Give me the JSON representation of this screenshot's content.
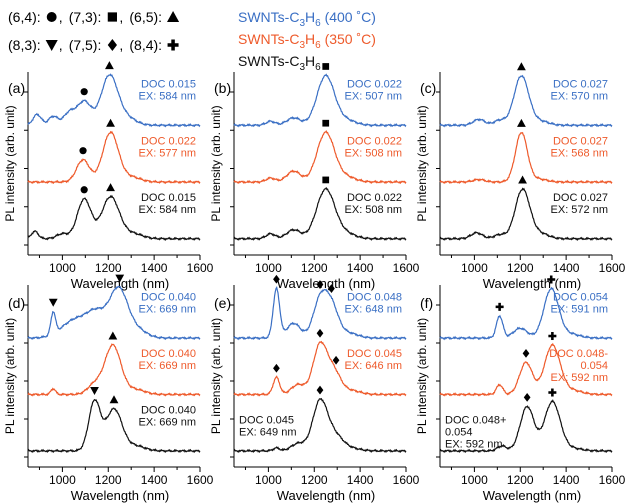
{
  "colors": {
    "blue": "#3a6fc4",
    "orange": "#ee5a2b",
    "black": "#111111"
  },
  "legend": {
    "markers": [
      {
        "label": "(6,4):",
        "symbol": "circle",
        "sep": ","
      },
      {
        "label": "(7,3):",
        "symbol": "square",
        "sep": ","
      },
      {
        "label": "(6,5):",
        "symbol": "triangle-up",
        "sep": ""
      },
      {
        "label": "(8,3):",
        "symbol": "triangle-down",
        "sep": ","
      },
      {
        "label": "(7,5):",
        "symbol": "diamond",
        "sep": ","
      },
      {
        "label": "(8,4):",
        "symbol": "cross",
        "sep": ""
      }
    ],
    "series": [
      {
        "name": "SWNTs-C3H6 (400 °C)",
        "base": "SWNTs-C",
        "sub": "3",
        "mid": "H",
        "sub2": "6",
        "suffix": " (400 ˚C)",
        "color": "blue"
      },
      {
        "name": "SWNTs-C3H6 (350 °C)",
        "base": "SWNTs-C",
        "sub": "3",
        "mid": "H",
        "sub2": "6",
        "suffix": " (350 ˚C)",
        "color": "orange"
      },
      {
        "name": "SWNTs-C3H6",
        "base": "SWNTs-C",
        "sub": "3",
        "mid": "H",
        "sub2": "6",
        "suffix": "",
        "color": "black"
      }
    ]
  },
  "chart_data": [
    {
      "panel": "(a)",
      "type": "line",
      "xlabel": "Wavelength (nm)",
      "ylabel": "PL intensity (arb. unit)",
      "xlim": [
        850,
        1600
      ],
      "xticks": [
        1000,
        1200,
        1400,
        1600
      ],
      "series": [
        {
          "color": "blue",
          "label": [
            "DOC 0.015",
            "EX: 584 nm"
          ],
          "peaks": [
            [
              890,
              0.22,
              18
            ],
            [
              960,
              0.18,
              20
            ],
            [
              1030,
              0.25,
              25
            ],
            [
              1095,
              0.48,
              30
            ],
            [
              1205,
              1.0,
              36
            ],
            [
              1280,
              0.15,
              40
            ]
          ],
          "markers": [
            {
              "x": 1095,
              "symbol": "circle"
            },
            {
              "x": 1205,
              "symbol": "triangle-up"
            }
          ]
        },
        {
          "color": "orange",
          "label": [
            "DOC 0.022",
            "EX: 577 nm"
          ],
          "peaks": [
            [
              1090,
              0.45,
              28
            ],
            [
              1210,
              1.0,
              34
            ],
            [
              1300,
              0.1,
              40
            ]
          ],
          "markers": [
            {
              "x": 1090,
              "symbol": "circle"
            },
            {
              "x": 1210,
              "symbol": "triangle-up"
            }
          ]
        },
        {
          "color": "black",
          "label": [
            "DOC 0.015",
            "EX: 584 nm"
          ],
          "peaks": [
            [
              880,
              0.15,
              15
            ],
            [
              1000,
              0.1,
              25
            ],
            [
              1095,
              0.8,
              30
            ],
            [
              1210,
              0.85,
              38
            ],
            [
              1310,
              0.1,
              40
            ]
          ],
          "markers": [
            {
              "x": 1095,
              "symbol": "circle"
            },
            {
              "x": 1210,
              "symbol": "triangle-up"
            }
          ]
        }
      ]
    },
    {
      "panel": "(b)",
      "type": "line",
      "xlabel": "Wavelength (nm)",
      "ylabel": "PL intensity (arb. unit)",
      "xlim": [
        850,
        1600
      ],
      "xticks": [
        1000,
        1200,
        1400,
        1600
      ],
      "series": [
        {
          "color": "blue",
          "label": [
            "DOC 0.022",
            "EX: 507 nm"
          ],
          "peaks": [
            [
              1010,
              0.08,
              20
            ],
            [
              1110,
              0.15,
              30
            ],
            [
              1250,
              1.0,
              38
            ],
            [
              1340,
              0.1,
              40
            ]
          ],
          "markers": [
            {
              "x": 1250,
              "symbol": "square"
            }
          ]
        },
        {
          "color": "orange",
          "label": [
            "DOC 0.022",
            "EX: 508 nm"
          ],
          "peaks": [
            [
              1010,
              0.08,
              20
            ],
            [
              1110,
              0.22,
              30
            ],
            [
              1250,
              1.0,
              38
            ],
            [
              1340,
              0.1,
              40
            ]
          ],
          "markers": [
            {
              "x": 1250,
              "symbol": "square"
            }
          ]
        },
        {
          "color": "black",
          "label": [
            "DOC 0.022",
            "EX: 508 nm"
          ],
          "peaks": [
            [
              1010,
              0.1,
              20
            ],
            [
              1110,
              0.18,
              30
            ],
            [
              1250,
              1.0,
              40
            ],
            [
              1340,
              0.1,
              40
            ]
          ],
          "markers": [
            {
              "x": 1250,
              "symbol": "square"
            }
          ]
        }
      ]
    },
    {
      "panel": "(c)",
      "type": "line",
      "xlabel": "Wavelength (nm)",
      "ylabel": "PL intensity (arb. unit)",
      "xlim": [
        850,
        1600
      ],
      "xticks": [
        1000,
        1200,
        1400,
        1600
      ],
      "series": [
        {
          "color": "blue",
          "label": [
            "DOC 0.027",
            "EX: 570 nm"
          ],
          "peaks": [
            [
              1020,
              0.12,
              25
            ],
            [
              1110,
              0.1,
              25
            ],
            [
              1205,
              1.0,
              32
            ],
            [
              1290,
              0.08,
              35
            ]
          ],
          "markers": [
            {
              "x": 1205,
              "symbol": "triangle-up"
            }
          ]
        },
        {
          "color": "orange",
          "label": [
            "DOC 0.027",
            "EX: 568 nm"
          ],
          "peaks": [
            [
              1020,
              0.05,
              25
            ],
            [
              1205,
              1.0,
              26
            ],
            [
              1280,
              0.06,
              35
            ]
          ],
          "markers": [
            {
              "x": 1205,
              "symbol": "triangle-up"
            }
          ]
        },
        {
          "color": "black",
          "label": [
            "DOC 0.027",
            "EX: 572 nm"
          ],
          "peaks": [
            [
              1010,
              0.12,
              25
            ],
            [
              1110,
              0.08,
              25
            ],
            [
              1210,
              1.0,
              32
            ],
            [
              1290,
              0.1,
              35
            ]
          ],
          "markers": [
            {
              "x": 1210,
              "symbol": "triangle-up"
            }
          ]
        }
      ]
    },
    {
      "panel": "(d)",
      "type": "line",
      "xlabel": "Wavelength (nm)",
      "ylabel": "PL intensity (arb. unit)",
      "xlim": [
        850,
        1600
      ],
      "xticks": [
        1000,
        1200,
        1400,
        1600
      ],
      "series": [
        {
          "color": "blue",
          "label": [
            "DOC 0.040",
            "EX: 669 nm"
          ],
          "peaks": [
            [
              960,
              0.45,
              10
            ],
            [
              1060,
              0.38,
              60
            ],
            [
              1150,
              0.42,
              40
            ],
            [
              1245,
              1.0,
              40
            ],
            [
              1330,
              0.15,
              40
            ]
          ],
          "markers": [
            {
              "x": 960,
              "symbol": "triangle-down"
            },
            {
              "x": 1250,
              "symbol": "triangle-down"
            }
          ]
        },
        {
          "color": "orange",
          "label": [
            "DOC 0.040",
            "EX: 669 nm"
          ],
          "peaks": [
            [
              960,
              0.12,
              10
            ],
            [
              1140,
              0.2,
              30
            ],
            [
              1220,
              1.0,
              35
            ],
            [
              1320,
              0.1,
              40
            ]
          ],
          "markers": [
            {
              "x": 1220,
              "symbol": "triangle-up"
            }
          ]
        },
        {
          "color": "black",
          "label": [
            "DOC 0.040",
            "EX: 669 nm"
          ],
          "peaks": [
            [
              1140,
              1.0,
              25
            ],
            [
              1225,
              0.85,
              35
            ],
            [
              1320,
              0.1,
              40
            ]
          ],
          "markers": [
            {
              "x": 1140,
              "symbol": "triangle-down"
            },
            {
              "x": 1225,
              "symbol": "triangle-up"
            }
          ]
        }
      ]
    },
    {
      "panel": "(e)",
      "type": "line",
      "xlabel": "Wavelength (nm)",
      "ylabel": "PL intensity (arb. unit)",
      "xlim": [
        850,
        1600
      ],
      "xticks": [
        1000,
        1200,
        1400,
        1600
      ],
      "series": [
        {
          "color": "blue",
          "label": [
            "DOC 0.048",
            "EX: 648 nm"
          ],
          "peaks": [
            [
              1035,
              1.0,
              14
            ],
            [
              1110,
              0.3,
              30
            ],
            [
              1225,
              0.75,
              30
            ],
            [
              1275,
              0.62,
              30
            ],
            [
              1350,
              0.1,
              40
            ]
          ],
          "markers": [
            {
              "x": 1035,
              "symbol": "diamond"
            },
            {
              "x": 1225,
              "symbol": "diamond"
            },
            {
              "x": 1275,
              "symbol": "diamond"
            }
          ]
        },
        {
          "color": "orange",
          "label": [
            "DOC 0.045",
            "EX: 646 nm"
          ],
          "peaks": [
            [
              1035,
              0.35,
              14
            ],
            [
              1130,
              0.2,
              30
            ],
            [
              1225,
              1.0,
              30
            ],
            [
              1285,
              0.45,
              30
            ],
            [
              1360,
              0.08,
              40
            ]
          ],
          "markers": [
            {
              "x": 1035,
              "symbol": "diamond"
            },
            {
              "x": 1225,
              "symbol": "diamond"
            },
            {
              "x": 1295,
              "symbol": "diamond"
            }
          ]
        },
        {
          "color": "black",
          "label": [
            "DOC 0.045",
            "EX: 649 nm"
          ],
          "peaks": [
            [
              1035,
              0.06,
              14
            ],
            [
              1130,
              0.15,
              30
            ],
            [
              1225,
              1.0,
              32
            ],
            [
              1290,
              0.3,
              35
            ],
            [
              1360,
              0.05,
              40
            ]
          ],
          "markers": [
            {
              "x": 1225,
              "symbol": "diamond"
            }
          ]
        }
      ]
    },
    {
      "panel": "(f)",
      "type": "line",
      "xlabel": "Wavelength (nm)",
      "ylabel": "PL intensity (arb. unit)",
      "xlim": [
        850,
        1600
      ],
      "xticks": [
        1000,
        1200,
        1400,
        1600
      ],
      "series": [
        {
          "color": "blue",
          "label": [
            "DOC 0.054",
            "EX: 591 nm"
          ],
          "peaks": [
            [
              1110,
              0.45,
              14
            ],
            [
              1200,
              0.2,
              30
            ],
            [
              1335,
              1.0,
              32
            ],
            [
              1420,
              0.08,
              40
            ]
          ],
          "markers": [
            {
              "x": 1110,
              "symbol": "cross"
            },
            {
              "x": 1335,
              "symbol": "cross"
            }
          ]
        },
        {
          "color": "orange",
          "label": [
            "DOC 0.048-",
            "0.054",
            "EX: 592 nm"
          ],
          "peaks": [
            [
              1110,
              0.2,
              14
            ],
            [
              1225,
              0.65,
              28
            ],
            [
              1340,
              1.0,
              34
            ],
            [
              1430,
              0.08,
              40
            ]
          ],
          "markers": [
            {
              "x": 1225,
              "symbol": "diamond"
            },
            {
              "x": 1340,
              "symbol": "cross"
            }
          ]
        },
        {
          "color": "black",
          "label": [
            "DOC 0.048+",
            "0.054",
            "EX: 592 nm"
          ],
          "peaks": [
            [
              1120,
              0.1,
              20
            ],
            [
              1230,
              0.9,
              30
            ],
            [
              1340,
              1.0,
              34
            ],
            [
              1430,
              0.05,
              40
            ]
          ],
          "markers": [
            {
              "x": 1230,
              "symbol": "diamond"
            },
            {
              "x": 1340,
              "symbol": "cross"
            }
          ]
        }
      ]
    }
  ]
}
